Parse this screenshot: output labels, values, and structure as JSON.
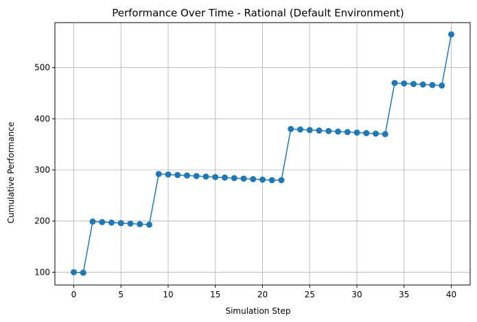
{
  "chart_data": {
    "type": "line",
    "title": "Performance Over Time - Rational (Default Environment)",
    "xlabel": "Simulation Step",
    "ylabel": "Cumulative Performance",
    "xlim": [
      -2,
      42
    ],
    "ylim": [
      75,
      588
    ],
    "x_ticks": [
      0,
      5,
      10,
      15,
      20,
      25,
      30,
      35,
      40
    ],
    "y_ticks": [
      100,
      200,
      300,
      400,
      500
    ],
    "grid": true,
    "series": [
      {
        "color": "#1f77b4",
        "marker": "circle",
        "x": [
          0,
          1,
          2,
          3,
          4,
          5,
          6,
          7,
          8,
          9,
          10,
          11,
          12,
          13,
          14,
          15,
          16,
          17,
          18,
          19,
          20,
          21,
          22,
          23,
          24,
          25,
          26,
          27,
          28,
          29,
          30,
          31,
          32,
          33,
          34,
          35,
          36,
          37,
          38,
          39,
          40
        ],
        "y": [
          100,
          99,
          199,
          198,
          197,
          196,
          195,
          194,
          193,
          292,
          291,
          290,
          289,
          288,
          287,
          286,
          285,
          284,
          283,
          282,
          281,
          280,
          280,
          380,
          379,
          378,
          377,
          376,
          375,
          374,
          373,
          372,
          371,
          370,
          470,
          469,
          468,
          467,
          466,
          465,
          565
        ]
      }
    ]
  }
}
